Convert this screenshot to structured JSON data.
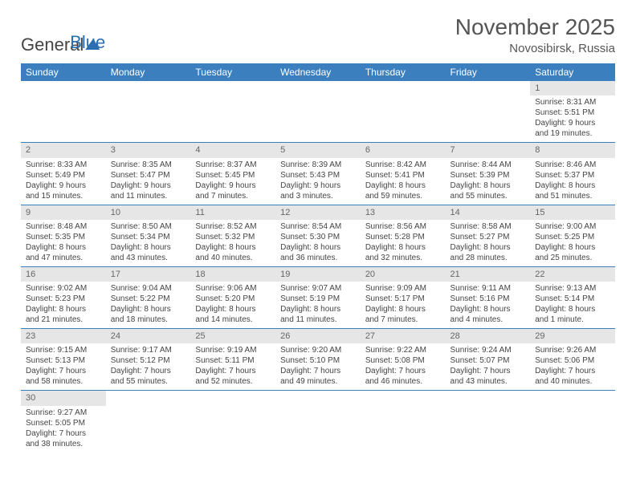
{
  "logo": {
    "part1": "General",
    "part2": "Blue"
  },
  "title": "November 2025",
  "location": "Novosibirsk, Russia",
  "colors": {
    "header_bg": "#3b7fbf",
    "header_fg": "#ffffff",
    "daynum_bg": "#e6e6e6",
    "text": "#444444",
    "rule": "#3b7fbf"
  },
  "fonts": {
    "title_pt": 28,
    "location_pt": 15,
    "header_pt": 12,
    "cell_pt": 10
  },
  "weekdays": [
    "Sunday",
    "Monday",
    "Tuesday",
    "Wednesday",
    "Thursday",
    "Friday",
    "Saturday"
  ],
  "weeks": [
    [
      null,
      null,
      null,
      null,
      null,
      null,
      {
        "n": "1",
        "sr": "Sunrise: 8:31 AM",
        "ss": "Sunset: 5:51 PM",
        "d1": "Daylight: 9 hours",
        "d2": "and 19 minutes."
      }
    ],
    [
      {
        "n": "2",
        "sr": "Sunrise: 8:33 AM",
        "ss": "Sunset: 5:49 PM",
        "d1": "Daylight: 9 hours",
        "d2": "and 15 minutes."
      },
      {
        "n": "3",
        "sr": "Sunrise: 8:35 AM",
        "ss": "Sunset: 5:47 PM",
        "d1": "Daylight: 9 hours",
        "d2": "and 11 minutes."
      },
      {
        "n": "4",
        "sr": "Sunrise: 8:37 AM",
        "ss": "Sunset: 5:45 PM",
        "d1": "Daylight: 9 hours",
        "d2": "and 7 minutes."
      },
      {
        "n": "5",
        "sr": "Sunrise: 8:39 AM",
        "ss": "Sunset: 5:43 PM",
        "d1": "Daylight: 9 hours",
        "d2": "and 3 minutes."
      },
      {
        "n": "6",
        "sr": "Sunrise: 8:42 AM",
        "ss": "Sunset: 5:41 PM",
        "d1": "Daylight: 8 hours",
        "d2": "and 59 minutes."
      },
      {
        "n": "7",
        "sr": "Sunrise: 8:44 AM",
        "ss": "Sunset: 5:39 PM",
        "d1": "Daylight: 8 hours",
        "d2": "and 55 minutes."
      },
      {
        "n": "8",
        "sr": "Sunrise: 8:46 AM",
        "ss": "Sunset: 5:37 PM",
        "d1": "Daylight: 8 hours",
        "d2": "and 51 minutes."
      }
    ],
    [
      {
        "n": "9",
        "sr": "Sunrise: 8:48 AM",
        "ss": "Sunset: 5:35 PM",
        "d1": "Daylight: 8 hours",
        "d2": "and 47 minutes."
      },
      {
        "n": "10",
        "sr": "Sunrise: 8:50 AM",
        "ss": "Sunset: 5:34 PM",
        "d1": "Daylight: 8 hours",
        "d2": "and 43 minutes."
      },
      {
        "n": "11",
        "sr": "Sunrise: 8:52 AM",
        "ss": "Sunset: 5:32 PM",
        "d1": "Daylight: 8 hours",
        "d2": "and 40 minutes."
      },
      {
        "n": "12",
        "sr": "Sunrise: 8:54 AM",
        "ss": "Sunset: 5:30 PM",
        "d1": "Daylight: 8 hours",
        "d2": "and 36 minutes."
      },
      {
        "n": "13",
        "sr": "Sunrise: 8:56 AM",
        "ss": "Sunset: 5:28 PM",
        "d1": "Daylight: 8 hours",
        "d2": "and 32 minutes."
      },
      {
        "n": "14",
        "sr": "Sunrise: 8:58 AM",
        "ss": "Sunset: 5:27 PM",
        "d1": "Daylight: 8 hours",
        "d2": "and 28 minutes."
      },
      {
        "n": "15",
        "sr": "Sunrise: 9:00 AM",
        "ss": "Sunset: 5:25 PM",
        "d1": "Daylight: 8 hours",
        "d2": "and 25 minutes."
      }
    ],
    [
      {
        "n": "16",
        "sr": "Sunrise: 9:02 AM",
        "ss": "Sunset: 5:23 PM",
        "d1": "Daylight: 8 hours",
        "d2": "and 21 minutes."
      },
      {
        "n": "17",
        "sr": "Sunrise: 9:04 AM",
        "ss": "Sunset: 5:22 PM",
        "d1": "Daylight: 8 hours",
        "d2": "and 18 minutes."
      },
      {
        "n": "18",
        "sr": "Sunrise: 9:06 AM",
        "ss": "Sunset: 5:20 PM",
        "d1": "Daylight: 8 hours",
        "d2": "and 14 minutes."
      },
      {
        "n": "19",
        "sr": "Sunrise: 9:07 AM",
        "ss": "Sunset: 5:19 PM",
        "d1": "Daylight: 8 hours",
        "d2": "and 11 minutes."
      },
      {
        "n": "20",
        "sr": "Sunrise: 9:09 AM",
        "ss": "Sunset: 5:17 PM",
        "d1": "Daylight: 8 hours",
        "d2": "and 7 minutes."
      },
      {
        "n": "21",
        "sr": "Sunrise: 9:11 AM",
        "ss": "Sunset: 5:16 PM",
        "d1": "Daylight: 8 hours",
        "d2": "and 4 minutes."
      },
      {
        "n": "22",
        "sr": "Sunrise: 9:13 AM",
        "ss": "Sunset: 5:14 PM",
        "d1": "Daylight: 8 hours",
        "d2": "and 1 minute."
      }
    ],
    [
      {
        "n": "23",
        "sr": "Sunrise: 9:15 AM",
        "ss": "Sunset: 5:13 PM",
        "d1": "Daylight: 7 hours",
        "d2": "and 58 minutes."
      },
      {
        "n": "24",
        "sr": "Sunrise: 9:17 AM",
        "ss": "Sunset: 5:12 PM",
        "d1": "Daylight: 7 hours",
        "d2": "and 55 minutes."
      },
      {
        "n": "25",
        "sr": "Sunrise: 9:19 AM",
        "ss": "Sunset: 5:11 PM",
        "d1": "Daylight: 7 hours",
        "d2": "and 52 minutes."
      },
      {
        "n": "26",
        "sr": "Sunrise: 9:20 AM",
        "ss": "Sunset: 5:10 PM",
        "d1": "Daylight: 7 hours",
        "d2": "and 49 minutes."
      },
      {
        "n": "27",
        "sr": "Sunrise: 9:22 AM",
        "ss": "Sunset: 5:08 PM",
        "d1": "Daylight: 7 hours",
        "d2": "and 46 minutes."
      },
      {
        "n": "28",
        "sr": "Sunrise: 9:24 AM",
        "ss": "Sunset: 5:07 PM",
        "d1": "Daylight: 7 hours",
        "d2": "and 43 minutes."
      },
      {
        "n": "29",
        "sr": "Sunrise: 9:26 AM",
        "ss": "Sunset: 5:06 PM",
        "d1": "Daylight: 7 hours",
        "d2": "and 40 minutes."
      }
    ],
    [
      {
        "n": "30",
        "sr": "Sunrise: 9:27 AM",
        "ss": "Sunset: 5:05 PM",
        "d1": "Daylight: 7 hours",
        "d2": "and 38 minutes."
      },
      null,
      null,
      null,
      null,
      null,
      null
    ]
  ]
}
